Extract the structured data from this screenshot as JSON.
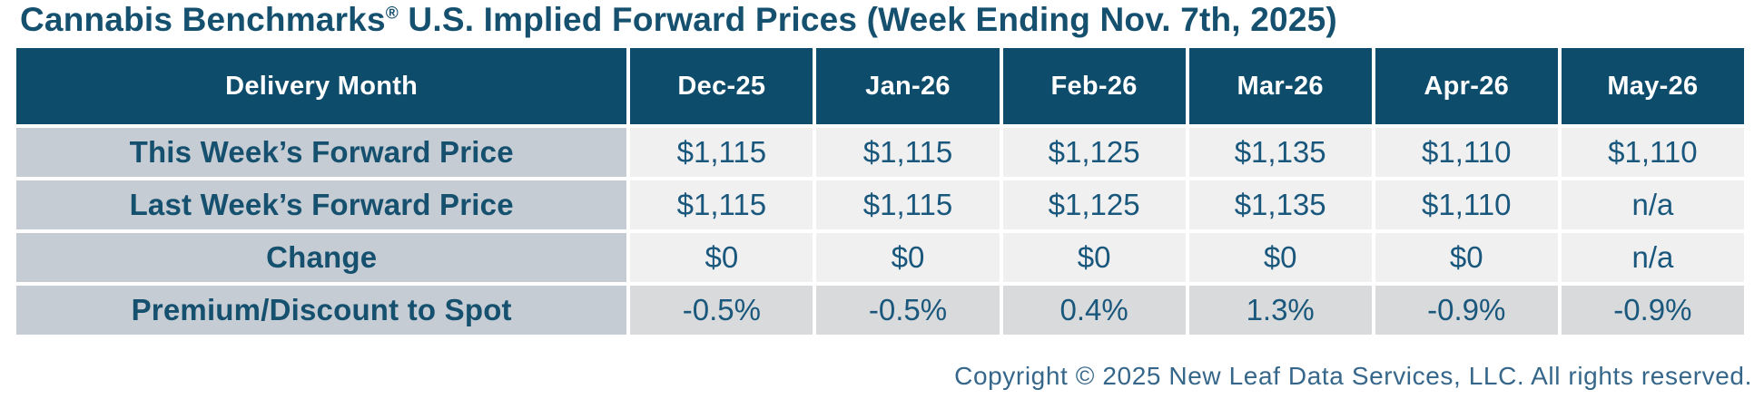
{
  "title": {
    "brand": "Cannabis Benchmarks",
    "registered_mark": "®",
    "rest": " U.S. Implied Forward Prices (Week Ending Nov. 7th, 2025)"
  },
  "chart_data": {
    "type": "table",
    "title": "Cannabis Benchmarks® U.S. Implied Forward Prices (Week Ending Nov. 7th, 2025)",
    "columns": [
      "Delivery Month",
      "Dec-25",
      "Jan-26",
      "Feb-26",
      "Mar-26",
      "Apr-26",
      "May-26"
    ],
    "rows": [
      {
        "label": "This Week’s Forward Price",
        "values": [
          "$1,115",
          "$1,115",
          "$1,125",
          "$1,135",
          "$1,110",
          "$1,110"
        ]
      },
      {
        "label": "Last Week’s Forward Price",
        "values": [
          "$1,115",
          "$1,115",
          "$1,125",
          "$1,135",
          "$1,110",
          "n/a"
        ]
      },
      {
        "label": "Change",
        "values": [
          "$0",
          "$0",
          "$0",
          "$0",
          "$0",
          "n/a"
        ]
      },
      {
        "label": "Premium/Discount to Spot",
        "values": [
          "-0.5%",
          "-0.5%",
          "0.4%",
          "1.3%",
          "-0.9%",
          "-0.9%"
        ]
      }
    ]
  },
  "footer": {
    "copyright": "Copyright © 2025 New Leaf Data Services, LLC. All rights reserved."
  },
  "colors": {
    "header_bg": "#0e4c6b",
    "title_text": "#15506f",
    "row_label_bg": "#c5ccd3",
    "data_cell_bg": "#f0f0f1",
    "premium_cell_bg": "#d9dadb",
    "data_text": "#1a577c",
    "copyright_text": "#36678a"
  }
}
